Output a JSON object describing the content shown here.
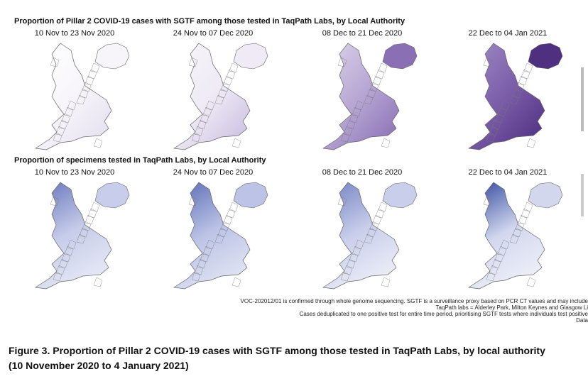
{
  "figure": {
    "rows": [
      {
        "title": "Proportion of Pillar 2 COVID-19 cases with SGTF among those tested in TaqPath Labs, by Local Authority",
        "panels": [
          "10 Nov to 23 Nov 2020",
          "24 Nov to 07 Dec 2020",
          "08 Dec to 21 Dec 2020",
          "22 Dec to 04 Jan 2021"
        ]
      },
      {
        "title": "Proportion of specimens tested in TaqPath Labs, by Local Authority",
        "panels": [
          "10 Nov to 23 Nov 2020",
          "24 Nov to 07 Dec 2020",
          "08 Dec to 21 Dec 2020",
          "22 Dec to 04 Jan 2021"
        ]
      }
    ],
    "footnotes": [
      "VOC-202012/01 is confirmed through whole genome sequencing. SGTF is a surveillance proxy based on PCR CT values and may include",
      "TaqPath labs = Alderley Park, Milton Keynes and Glasgow Li",
      "Cases deduplicated to one positive test for entire time period, prioritising SGTF tests where individuals test positive",
      "Data"
    ],
    "caption": [
      "Figure 3. Proportion of Pillar 2 COVID-19 cases with SGTF among those tested in TaqPath Labs, by local authority",
      "(10 November 2020 to 4 January 2021)"
    ]
  }
}
